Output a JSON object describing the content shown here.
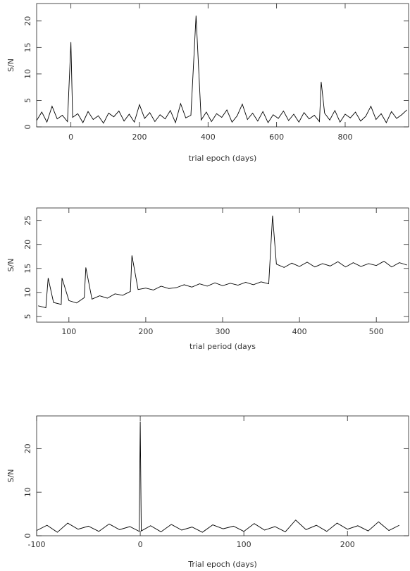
{
  "chart_data": [
    {
      "type": "line",
      "xlabel": "trial epoch (days)",
      "ylabel": "S/N",
      "color": "#000000",
      "xlim": [
        -100,
        985
      ],
      "ylim": [
        0,
        23.3
      ],
      "xticks": [
        0,
        200,
        400,
        600,
        800
      ],
      "yticks": [
        0,
        5,
        10,
        15,
        20
      ],
      "x": [
        -100,
        -85,
        -70,
        -55,
        -40,
        -25,
        -10,
        0,
        5,
        20,
        35,
        50,
        65,
        80,
        95,
        110,
        125,
        140,
        155,
        170,
        185,
        200,
        215,
        230,
        245,
        260,
        275,
        290,
        305,
        320,
        335,
        350,
        365,
        380,
        395,
        410,
        425,
        440,
        455,
        470,
        485,
        500,
        515,
        530,
        545,
        560,
        575,
        590,
        605,
        620,
        635,
        650,
        665,
        680,
        695,
        710,
        725,
        730,
        740,
        755,
        770,
        785,
        800,
        815,
        830,
        845,
        860,
        875,
        890,
        905,
        920,
        935,
        950,
        965,
        980
      ],
      "values": [
        1.2,
        2.8,
        0.9,
        3.9,
        1.5,
        2.2,
        1.0,
        16,
        1.8,
        2.5,
        0.8,
        2.9,
        1.4,
        2.1,
        0.7,
        2.6,
        1.9,
        3.0,
        1.1,
        2.4,
        0.9,
        4.2,
        1.6,
        2.7,
        1.0,
        2.3,
        1.5,
        3.1,
        0.8,
        4.4,
        1.7,
        2.2,
        21,
        1.3,
        2.8,
        1.0,
        2.5,
        1.8,
        3.2,
        0.9,
        2.1,
        4.3,
        1.4,
        2.6,
        1.1,
        2.9,
        0.8,
        2.3,
        1.6,
        3.0,
        1.2,
        2.4,
        0.9,
        2.7,
        1.5,
        2.2,
        1.0,
        8.5,
        2.6,
        1.3,
        3.1,
        0.9,
        2.4,
        1.7,
        2.8,
        1.1,
        2.0,
        3.9,
        1.4,
        2.5,
        0.8,
        2.9,
        1.6,
        2.3,
        3.2
      ]
    },
    {
      "type": "line",
      "xlabel": "trial period (days",
      "ylabel": "S/N",
      "color": "#000000",
      "xlim": [
        58,
        542
      ],
      "ylim": [
        3.8,
        27.6
      ],
      "xticks": [
        100,
        200,
        300,
        400,
        500
      ],
      "yticks": [
        5,
        10,
        15,
        20,
        25
      ],
      "x": [
        60,
        70,
        73,
        80,
        90,
        91,
        100,
        110,
        120,
        122,
        130,
        140,
        150,
        160,
        170,
        180,
        182,
        190,
        200,
        210,
        220,
        230,
        240,
        250,
        260,
        270,
        280,
        290,
        300,
        310,
        320,
        330,
        340,
        350,
        360,
        365,
        370,
        380,
        390,
        400,
        410,
        420,
        430,
        440,
        450,
        460,
        470,
        480,
        490,
        500,
        510,
        520,
        530,
        540
      ],
      "values": [
        7.2,
        6.8,
        13,
        7.9,
        7.5,
        13,
        8.3,
        7.8,
        8.9,
        15.2,
        8.6,
        9.3,
        8.8,
        9.7,
        9.4,
        10.2,
        17.7,
        10.6,
        10.9,
        10.5,
        11.3,
        10.8,
        11.0,
        11.6,
        11.1,
        11.8,
        11.3,
        12.0,
        11.4,
        11.9,
        11.5,
        12.1,
        11.6,
        12.2,
        11.8,
        26,
        15.9,
        15.2,
        16.1,
        15.4,
        16.3,
        15.3,
        16.0,
        15.5,
        16.4,
        15.3,
        16.2,
        15.4,
        16.0,
        15.6,
        16.5,
        15.3,
        16.2,
        15.7
      ]
    },
    {
      "type": "line",
      "xlabel": "Trial epoch (days)",
      "ylabel": "S/N",
      "color": "#000000",
      "xlim": [
        -100,
        259
      ],
      "ylim": [
        0,
        27.5
      ],
      "xticks": [
        -100,
        0,
        100,
        200
      ],
      "yticks": [
        0,
        10,
        20
      ],
      "x": [
        -100,
        -90,
        -80,
        -70,
        -60,
        -50,
        -40,
        -30,
        -20,
        -10,
        -1,
        0,
        1,
        10,
        20,
        30,
        40,
        50,
        60,
        70,
        80,
        90,
        100,
        110,
        120,
        130,
        140,
        150,
        160,
        170,
        180,
        190,
        200,
        210,
        220,
        230,
        240,
        250
      ],
      "values": [
        1.2,
        2.4,
        0.8,
        2.9,
        1.5,
        2.2,
        1.0,
        2.7,
        1.4,
        2.1,
        1.0,
        26.2,
        1.1,
        2.3,
        0.9,
        2.6,
        1.3,
        2.0,
        0.8,
        2.5,
        1.6,
        2.2,
        1.0,
        2.8,
        1.3,
        2.1,
        0.9,
        3.6,
        1.4,
        2.4,
        1.0,
        2.9,
        1.5,
        2.3,
        1.1,
        3.2,
        1.2,
        2.4
      ]
    }
  ]
}
